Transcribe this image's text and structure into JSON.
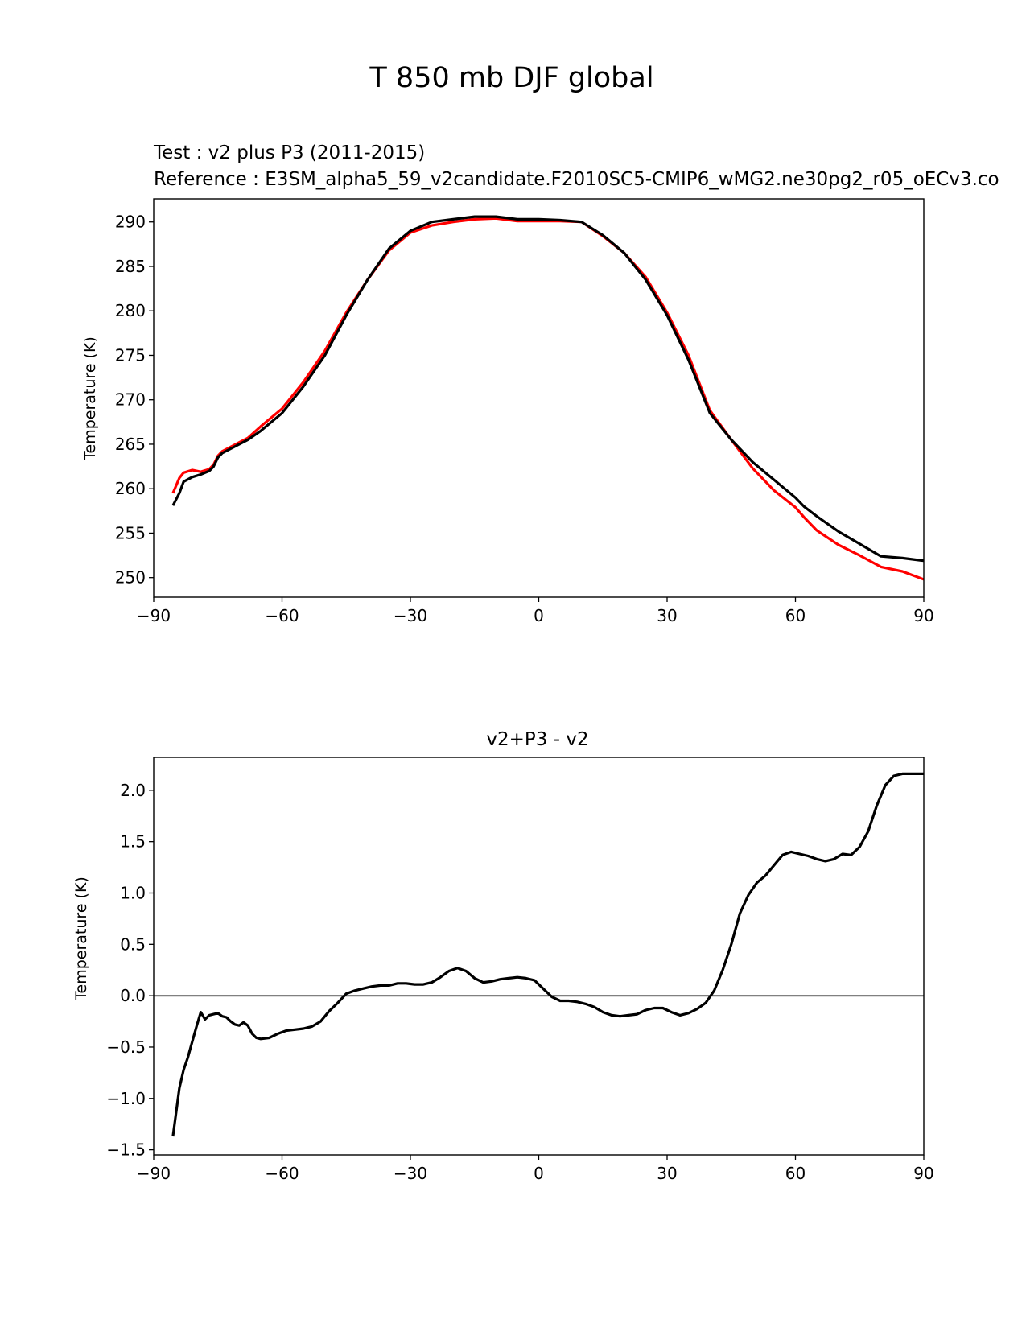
{
  "figure_title": "T 850 mb DJF global",
  "colors": {
    "test": "#000000",
    "reference": "#ff0000",
    "zero_line": "#808080"
  },
  "chart_data": [
    {
      "type": "line",
      "test_label": "Test : v2 plus P3 (2011-2015)",
      "reference_label": "Reference : E3SM_alpha5_59_v2candidate.F2010SC5-CMIP6_wMG2.ne30pg2_r05_oECv3.co",
      "ylabel": "Temperature (K)",
      "xlabel": "",
      "xlim": [
        -90,
        90
      ],
      "ylim": [
        247.8,
        292.6
      ],
      "xticks": [
        -90,
        -60,
        -30,
        0,
        30,
        60,
        90
      ],
      "xtick_labels": [
        "−90",
        "−60",
        "−30",
        "0",
        "30",
        "60",
        "90"
      ],
      "yticks": [
        250,
        255,
        260,
        265,
        270,
        275,
        280,
        285,
        290
      ],
      "ytick_labels": [
        "250",
        "255",
        "260",
        "265",
        "270",
        "275",
        "280",
        "285",
        "290"
      ],
      "series": [
        {
          "name": "test",
          "x": [
            -85.5,
            -84,
            -83,
            -81,
            -79,
            -77,
            -76,
            -75,
            -74,
            -72,
            -70,
            -68,
            -65,
            -60,
            -55,
            -50,
            -45,
            -40,
            -35,
            -30,
            -25,
            -20,
            -15,
            -10,
            -5,
            0,
            5,
            10,
            15,
            20,
            25,
            30,
            35,
            40,
            45,
            50,
            55,
            60,
            62,
            65,
            70,
            75,
            80,
            85,
            90
          ],
          "y": [
            258.1,
            259.5,
            260.8,
            261.3,
            261.6,
            262.0,
            262.5,
            263.5,
            264.0,
            264.5,
            265.0,
            265.5,
            266.5,
            268.5,
            271.5,
            275.0,
            279.5,
            283.5,
            287.0,
            289.0,
            290.0,
            290.3,
            290.6,
            290.6,
            290.3,
            290.3,
            290.2,
            290.0,
            288.5,
            286.5,
            283.5,
            279.5,
            274.5,
            268.5,
            265.5,
            263.0,
            261.0,
            259.0,
            258.0,
            256.9,
            255.2,
            253.8,
            252.4,
            252.2,
            251.9
          ]
        },
        {
          "name": "reference",
          "x": [
            -85.5,
            -84,
            -83,
            -81,
            -79,
            -77,
            -76,
            -75,
            -74,
            -72,
            -70,
            -68,
            -65,
            -60,
            -55,
            -50,
            -45,
            -40,
            -35,
            -30,
            -25,
            -20,
            -15,
            -10,
            -5,
            0,
            5,
            10,
            15,
            20,
            25,
            30,
            35,
            40,
            45,
            50,
            55,
            60,
            62,
            65,
            70,
            75,
            80,
            85,
            90
          ],
          "y": [
            259.5,
            261.2,
            261.8,
            262.1,
            261.9,
            262.2,
            262.7,
            263.7,
            264.2,
            264.7,
            265.2,
            265.7,
            267.0,
            269.0,
            272.0,
            275.5,
            279.8,
            283.5,
            286.8,
            288.8,
            289.6,
            290.0,
            290.3,
            290.4,
            290.1,
            290.1,
            290.1,
            290.0,
            288.4,
            286.5,
            283.8,
            279.8,
            275.0,
            268.8,
            265.5,
            262.3,
            259.8,
            257.9,
            256.8,
            255.3,
            253.7,
            252.5,
            251.2,
            250.7,
            249.8
          ]
        }
      ]
    },
    {
      "type": "line",
      "title": "v2+P3 - v2",
      "ylabel": "Temperature (K)",
      "xlabel": "",
      "xlim": [
        -90,
        90
      ],
      "ylim": [
        -1.55,
        2.32
      ],
      "xticks": [
        -90,
        -60,
        -30,
        0,
        30,
        60,
        90
      ],
      "xtick_labels": [
        "−90",
        "−60",
        "−30",
        "0",
        "30",
        "60",
        "90"
      ],
      "yticks": [
        -1.5,
        -1.0,
        -0.5,
        0.0,
        0.5,
        1.0,
        1.5,
        2.0
      ],
      "ytick_labels": [
        "−1.5",
        "−1.0",
        "−0.5",
        "0.0",
        "0.5",
        "1.0",
        "1.5",
        "2.0"
      ],
      "zero_line": 0.0,
      "series": [
        {
          "name": "difference",
          "x": [
            -85.5,
            -84,
            -83,
            -82,
            -81,
            -80,
            -79,
            -78,
            -77,
            -76,
            -75,
            -74,
            -73,
            -72,
            -71,
            -70,
            -69,
            -68,
            -67,
            -66,
            -65,
            -63,
            -61,
            -59,
            -57,
            -55,
            -53,
            -51,
            -49,
            -47,
            -45,
            -43,
            -41,
            -39,
            -37,
            -35,
            -33,
            -31,
            -29,
            -27,
            -25,
            -23,
            -21,
            -19,
            -17,
            -15,
            -13,
            -11,
            -9,
            -7,
            -5,
            -3,
            -1,
            1,
            3,
            5,
            7,
            9,
            11,
            13,
            15,
            17,
            19,
            21,
            23,
            25,
            27,
            29,
            31,
            33,
            35,
            37,
            39,
            41,
            43,
            45,
            47,
            49,
            51,
            53,
            55,
            57,
            59,
            61,
            63,
            65,
            67,
            69,
            71,
            73,
            75,
            77,
            79,
            81,
            83,
            85,
            87,
            89,
            90
          ],
          "y": [
            -1.37,
            -0.9,
            -0.72,
            -0.6,
            -0.45,
            -0.3,
            -0.16,
            -0.23,
            -0.19,
            -0.18,
            -0.17,
            -0.2,
            -0.21,
            -0.25,
            -0.28,
            -0.29,
            -0.26,
            -0.29,
            -0.37,
            -0.41,
            -0.42,
            -0.41,
            -0.37,
            -0.34,
            -0.33,
            -0.32,
            -0.3,
            -0.25,
            -0.15,
            -0.07,
            0.02,
            0.05,
            0.07,
            0.09,
            0.1,
            0.1,
            0.12,
            0.12,
            0.11,
            0.11,
            0.13,
            0.18,
            0.24,
            0.27,
            0.24,
            0.17,
            0.13,
            0.14,
            0.16,
            0.17,
            0.18,
            0.17,
            0.15,
            0.07,
            -0.01,
            -0.05,
            -0.05,
            -0.06,
            -0.08,
            -0.11,
            -0.16,
            -0.19,
            -0.2,
            -0.19,
            -0.18,
            -0.14,
            -0.12,
            -0.12,
            -0.16,
            -0.19,
            -0.17,
            -0.13,
            -0.07,
            0.05,
            0.25,
            0.5,
            0.8,
            0.98,
            1.1,
            1.17,
            1.27,
            1.37,
            1.4,
            1.38,
            1.36,
            1.33,
            1.31,
            1.33,
            1.38,
            1.37,
            1.45,
            1.6,
            1.85,
            2.05,
            2.14,
            2.16,
            2.16,
            2.16,
            2.16
          ]
        }
      ]
    }
  ]
}
